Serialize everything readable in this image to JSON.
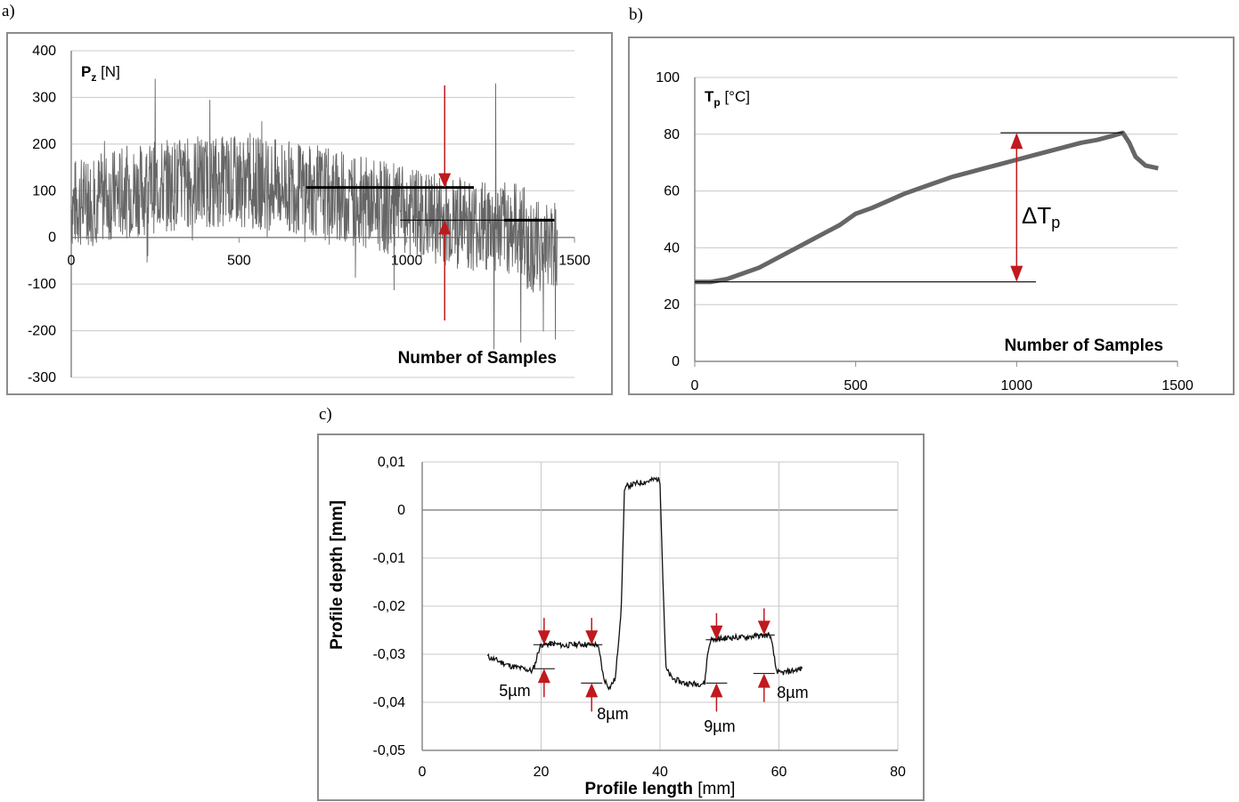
{
  "panels": {
    "a": "a)",
    "b": "b)",
    "c": "c)"
  },
  "colors": {
    "series": "#666666",
    "profile": "#111111",
    "arrow": "#c0191e",
    "grid": "#c8c8c8",
    "frame": "#8c8c8c"
  },
  "chart_data": [
    {
      "id": "a",
      "type": "line",
      "title": "",
      "ylabel_main": "P",
      "ylabel_sub": "z",
      "ylabel_unit": " [N]",
      "xlabel": "Number of Samples",
      "xlim": [
        0,
        1500
      ],
      "ylim": [
        -300,
        400
      ],
      "xticks": [
        "0",
        "500",
        "1000",
        "1500"
      ],
      "yticks": [
        "-300",
        "-200",
        "-100",
        "0",
        "100",
        "200",
        "300",
        "400"
      ],
      "grid": true,
      "series": [
        {
          "values_summary": {
            "samples": 1450,
            "typical_range": [
              -100,
              250
            ],
            "max": 340,
            "min": -240
          }
        }
      ],
      "annotations": {
        "mean_line_upper": {
          "x": [
            700,
            1200
          ],
          "y": 107
        },
        "mean_line_lower_thin": {
          "x": [
            980,
            1290
          ],
          "y": 37
        },
        "mean_line_lower_thick": {
          "x": [
            1290,
            1440
          ],
          "y": 37
        },
        "arrow_x": 1113
      }
    },
    {
      "id": "b",
      "type": "line",
      "title": "",
      "ylabel_main": "T",
      "ylabel_sub": "p",
      "ylabel_unit": " [°C]",
      "xlabel": "Number of Samples",
      "xlim": [
        0,
        1500
      ],
      "ylim": [
        0,
        100
      ],
      "xticks": [
        "0",
        "500",
        "1000",
        "1500"
      ],
      "yticks": [
        "0",
        "20",
        "40",
        "60",
        "80",
        "100"
      ],
      "grid": true,
      "series": [
        {
          "x": [
            0,
            50,
            100,
            150,
            200,
            250,
            300,
            350,
            400,
            450,
            500,
            550,
            600,
            650,
            700,
            750,
            800,
            850,
            900,
            950,
            1000,
            1050,
            1100,
            1150,
            1200,
            1250,
            1300,
            1330,
            1350,
            1370,
            1400,
            1440
          ],
          "y": [
            28,
            28,
            29,
            31,
            33,
            36,
            39,
            42,
            45,
            48,
            52,
            54,
            56.5,
            59,
            61,
            63,
            65,
            66.5,
            68,
            69.5,
            71,
            72.5,
            74,
            75.5,
            77,
            78,
            79.5,
            80.5,
            77,
            72,
            69,
            68
          ]
        }
      ],
      "annotations": {
        "delta_label_main": "ΔT",
        "delta_label_sub": "p",
        "upper_line": {
          "x": [
            950,
            1330
          ],
          "y": 80.5
        },
        "lower_line": {
          "x": [
            0,
            1060
          ],
          "y": 28
        },
        "arrow_x": 1000
      }
    },
    {
      "id": "c",
      "type": "line",
      "title": "",
      "ylabel": "Profile depth [mm]",
      "xlabel_bold": "Profile length",
      "xlabel_unit": " [mm]",
      "xlim": [
        0,
        80
      ],
      "ylim": [
        -0.05,
        0.01
      ],
      "xticks": [
        "0",
        "20",
        "40",
        "60",
        "80"
      ],
      "yticks": [
        "-0,05",
        "-0,04",
        "-0,03",
        "-0,02",
        "-0,01",
        "0",
        "0,01"
      ],
      "grid": true,
      "series": [
        {
          "x": [
            11,
            13,
            15,
            17,
            18.5,
            19,
            19.5,
            20,
            22,
            24,
            26,
            28,
            29.5,
            30,
            30.5,
            31.5,
            32.5,
            33.5,
            34,
            34.5,
            36,
            38,
            39.5,
            40,
            40.5,
            41,
            42,
            44,
            46,
            47.5,
            48,
            48.5,
            50,
            52,
            54,
            56,
            58.5,
            59,
            59.5,
            60,
            62,
            64
          ],
          "y": [
            -0.0305,
            -0.0315,
            -0.0325,
            -0.033,
            -0.0335,
            -0.032,
            -0.0295,
            -0.028,
            -0.0278,
            -0.0282,
            -0.0279,
            -0.028,
            -0.028,
            -0.031,
            -0.035,
            -0.037,
            -0.035,
            -0.02,
            0.004,
            0.005,
            0.0055,
            0.006,
            0.0065,
            0.006,
            -0.015,
            -0.033,
            -0.035,
            -0.036,
            -0.0362,
            -0.036,
            -0.03,
            -0.027,
            -0.0268,
            -0.0265,
            -0.0265,
            -0.0262,
            -0.026,
            -0.029,
            -0.033,
            -0.034,
            -0.0335,
            -0.033
          ]
        }
      ],
      "annotations": {
        "labels": [
          "5µm",
          "8µm",
          "9µm",
          "8µm"
        ],
        "steps": [
          {
            "x": 20.5,
            "top": -0.028,
            "bottom": -0.033
          },
          {
            "x": 28.5,
            "top": -0.028,
            "bottom": -0.036
          },
          {
            "x": 49.5,
            "top": -0.027,
            "bottom": -0.036
          },
          {
            "x": 57.5,
            "top": -0.026,
            "bottom": -0.034
          }
        ]
      }
    }
  ]
}
